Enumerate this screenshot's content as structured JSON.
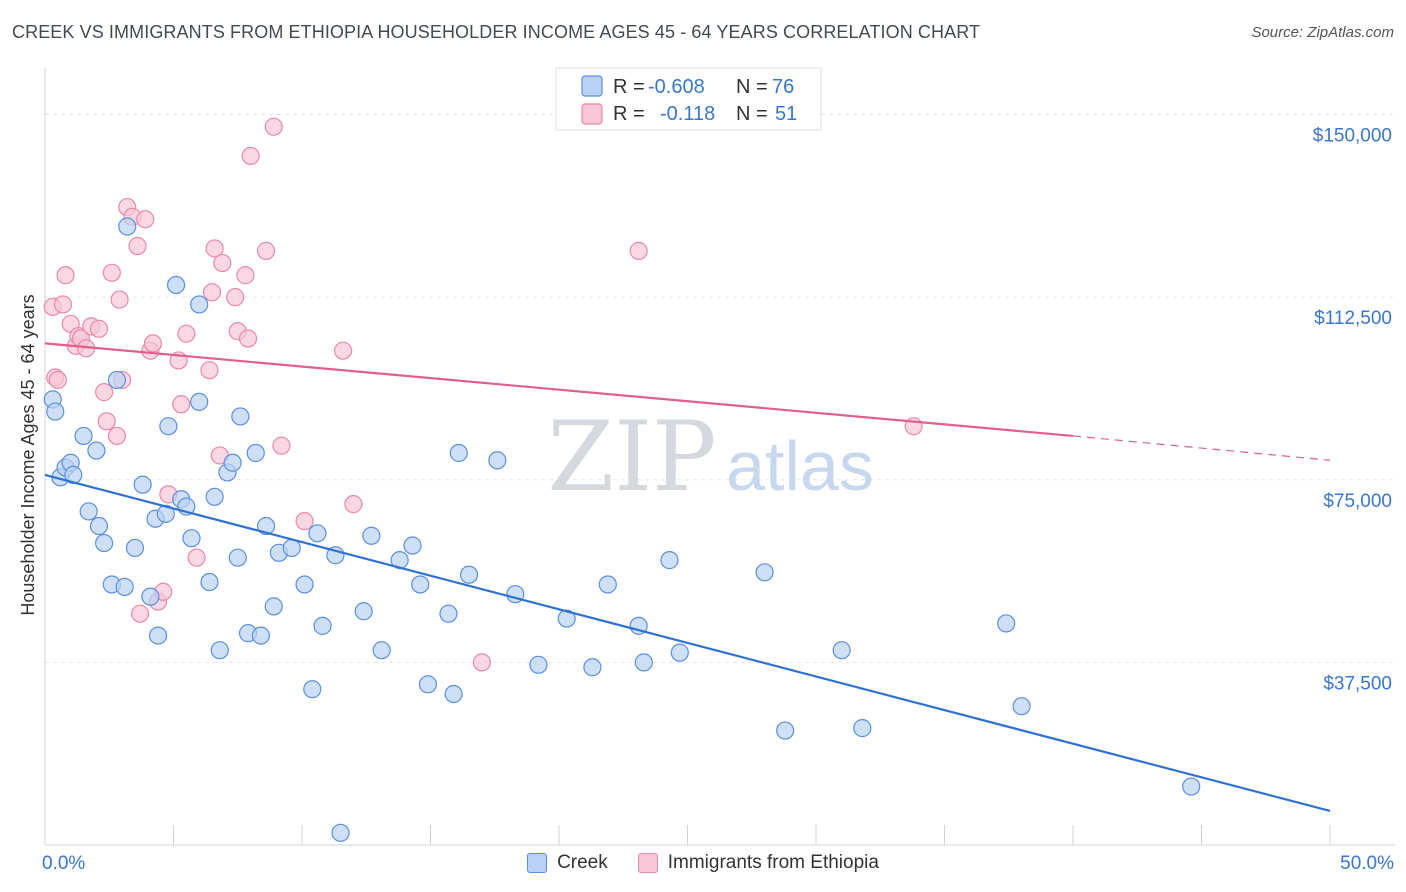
{
  "header": {
    "title": "CREEK VS IMMIGRANTS FROM ETHIOPIA HOUSEHOLDER INCOME AGES 45 - 64 YEARS CORRELATION CHART",
    "source": "Source: ZipAtlas.com"
  },
  "watermark": {
    "zip": "ZIP",
    "atlas": "atlas"
  },
  "legend_top": {
    "rows": [
      {
        "r_label": "R =",
        "r_value": "-0.608",
        "n_label": "N =",
        "n_value": "76"
      },
      {
        "r_label": "R =",
        "r_value": "-0.118",
        "n_label": "N =",
        "n_value": "51"
      }
    ]
  },
  "legend_bottom": {
    "items": [
      "Creek",
      "Immigrants from Ethiopia"
    ]
  },
  "chart_data": {
    "type": "scatter",
    "ylabel": "Householder Income Ages 45 - 64 years",
    "xlim": [
      0,
      50
    ],
    "ylim": [
      0,
      157500
    ],
    "x_tick_labels": [
      "0.0%",
      "50.0%"
    ],
    "y_ticks": [
      37500,
      75000,
      112500,
      150000
    ],
    "y_tick_labels": [
      "$37,500",
      "$75,000",
      "$112,500",
      "$150,000"
    ],
    "grid": true,
    "colors": {
      "creek": "#5b8fe0",
      "creek_fill": "#b9d1f5",
      "creek_line": "#2f72d4",
      "ethiopia": "#e88aa8",
      "ethiopia_fill": "#f8c6d6",
      "ethiopia_line": "#e0608a",
      "tick_text": "#3a76cc"
    },
    "series": [
      {
        "name": "Creek",
        "trend": {
          "x": [
            0,
            50
          ],
          "y": [
            76000,
            7000
          ]
        },
        "points": [
          [
            0.3,
            91500
          ],
          [
            0.4,
            89000
          ],
          [
            0.6,
            75500
          ],
          [
            0.8,
            77500
          ],
          [
            1.0,
            78500
          ],
          [
            1.1,
            76000
          ],
          [
            1.5,
            84000
          ],
          [
            1.7,
            68500
          ],
          [
            2.0,
            81000
          ],
          [
            2.1,
            65500
          ],
          [
            2.3,
            62000
          ],
          [
            2.6,
            53500
          ],
          [
            2.8,
            95500
          ],
          [
            3.1,
            53000
          ],
          [
            3.2,
            127000
          ],
          [
            3.5,
            61000
          ],
          [
            3.8,
            74000
          ],
          [
            4.1,
            51000
          ],
          [
            4.3,
            67000
          ],
          [
            4.4,
            43000
          ],
          [
            4.7,
            68000
          ],
          [
            4.8,
            86000
          ],
          [
            5.1,
            115000
          ],
          [
            5.3,
            71000
          ],
          [
            5.5,
            69500
          ],
          [
            5.7,
            63000
          ],
          [
            6.0,
            91000
          ],
          [
            6.0,
            111000
          ],
          [
            6.4,
            54000
          ],
          [
            6.6,
            71500
          ],
          [
            6.8,
            40000
          ],
          [
            7.1,
            76500
          ],
          [
            7.3,
            78500
          ],
          [
            7.5,
            59000
          ],
          [
            7.6,
            88000
          ],
          [
            7.9,
            43500
          ],
          [
            8.2,
            80500
          ],
          [
            8.4,
            43000
          ],
          [
            8.6,
            65500
          ],
          [
            8.9,
            49000
          ],
          [
            9.1,
            60000
          ],
          [
            9.6,
            61000
          ],
          [
            10.1,
            53500
          ],
          [
            10.4,
            32000
          ],
          [
            10.6,
            64000
          ],
          [
            10.8,
            45000
          ],
          [
            11.3,
            59500
          ],
          [
            11.5,
            2500
          ],
          [
            12.4,
            48000
          ],
          [
            12.7,
            63500
          ],
          [
            13.1,
            40000
          ],
          [
            13.8,
            58500
          ],
          [
            14.3,
            61500
          ],
          [
            14.6,
            53500
          ],
          [
            14.9,
            33000
          ],
          [
            15.7,
            47500
          ],
          [
            15.9,
            31000
          ],
          [
            16.1,
            80500
          ],
          [
            16.5,
            55500
          ],
          [
            17.6,
            79000
          ],
          [
            18.3,
            51500
          ],
          [
            19.2,
            37000
          ],
          [
            20.3,
            46500
          ],
          [
            21.3,
            36500
          ],
          [
            21.9,
            53500
          ],
          [
            23.1,
            45000
          ],
          [
            23.3,
            37500
          ],
          [
            24.3,
            58500
          ],
          [
            24.7,
            39500
          ],
          [
            28.0,
            56000
          ],
          [
            28.8,
            23500
          ],
          [
            31.0,
            40000
          ],
          [
            31.8,
            24000
          ],
          [
            37.4,
            45500
          ],
          [
            38.0,
            28500
          ],
          [
            44.6,
            12000
          ]
        ]
      },
      {
        "name": "Immigrants from Ethiopia",
        "trend": {
          "x": [
            0,
            40
          ],
          "y": [
            103000,
            84000
          ],
          "x_ext": [
            40,
            50
          ],
          "y_ext": [
            84000,
            79000
          ]
        },
        "points": [
          [
            0.3,
            110500
          ],
          [
            0.4,
            96000
          ],
          [
            0.5,
            95500
          ],
          [
            0.7,
            111000
          ],
          [
            0.8,
            117000
          ],
          [
            1.0,
            107000
          ],
          [
            1.2,
            102500
          ],
          [
            1.3,
            104500
          ],
          [
            1.4,
            104000
          ],
          [
            1.6,
            102000
          ],
          [
            1.8,
            106500
          ],
          [
            2.1,
            106000
          ],
          [
            2.3,
            93000
          ],
          [
            2.4,
            87000
          ],
          [
            2.6,
            117500
          ],
          [
            2.8,
            84000
          ],
          [
            2.9,
            112000
          ],
          [
            3.0,
            95500
          ],
          [
            3.2,
            131000
          ],
          [
            3.4,
            129000
          ],
          [
            3.6,
            123000
          ],
          [
            3.7,
            47500
          ],
          [
            3.9,
            128500
          ],
          [
            4.1,
            101500
          ],
          [
            4.2,
            103000
          ],
          [
            4.4,
            50000
          ],
          [
            4.6,
            52000
          ],
          [
            4.8,
            72000
          ],
          [
            5.2,
            99500
          ],
          [
            5.3,
            90500
          ],
          [
            5.5,
            105000
          ],
          [
            5.9,
            59000
          ],
          [
            6.4,
            97500
          ],
          [
            6.5,
            113500
          ],
          [
            6.6,
            122500
          ],
          [
            6.8,
            80000
          ],
          [
            6.9,
            119500
          ],
          [
            7.4,
            112500
          ],
          [
            7.5,
            105500
          ],
          [
            7.8,
            117000
          ],
          [
            7.9,
            104000
          ],
          [
            8.0,
            141500
          ],
          [
            8.6,
            122000
          ],
          [
            8.9,
            147500
          ],
          [
            9.2,
            82000
          ],
          [
            10.1,
            66500
          ],
          [
            11.6,
            101500
          ],
          [
            12.0,
            70000
          ],
          [
            17.0,
            37500
          ],
          [
            23.1,
            122000
          ],
          [
            33.8,
            86000
          ]
        ]
      }
    ]
  }
}
